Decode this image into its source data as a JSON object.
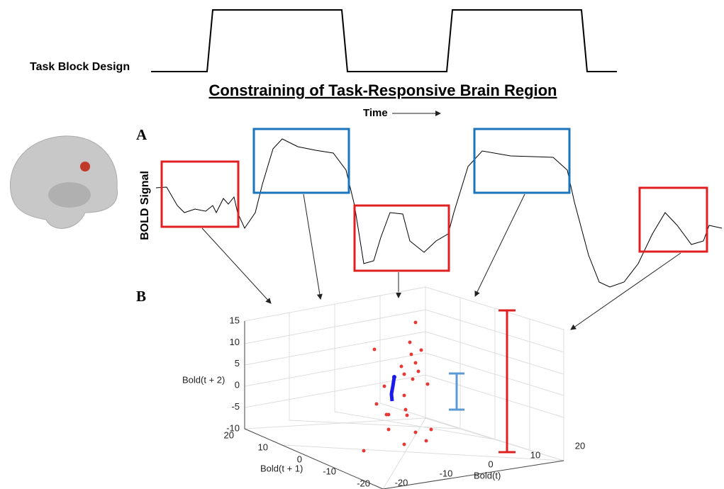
{
  "header": {
    "task_label": "Task Block Design",
    "title": "Constraining  of Task-Responsive Brain Region",
    "time_label": "Time"
  },
  "panel_a": {
    "letter": "A",
    "y_label": "BOLD Signal"
  },
  "panel_b": {
    "letter": "B",
    "z_label": "Bold(t + 2)",
    "y_label": "Bold(t + 1)",
    "x_label": "Bold(t)",
    "z_ticks": [
      15,
      10,
      5,
      0,
      -5,
      -10
    ],
    "y_ticks": [
      20,
      10,
      0,
      -10,
      -20
    ],
    "x_ticks": [
      -20,
      -10,
      0,
      10,
      20
    ]
  }
}
